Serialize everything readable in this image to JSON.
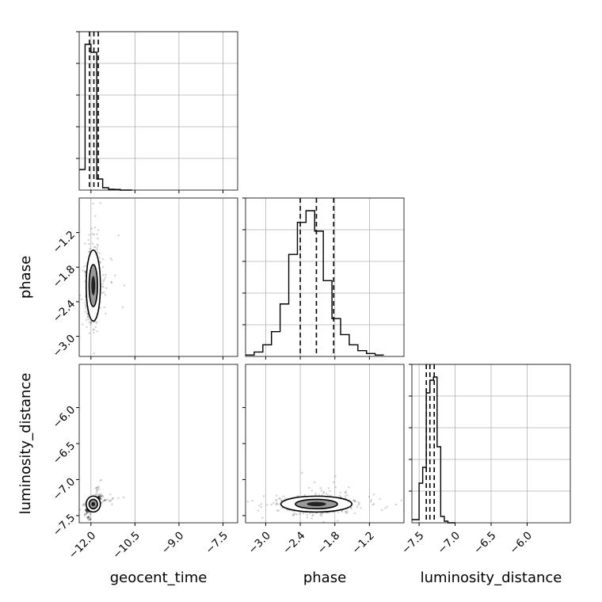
{
  "chart_data": {
    "type": "corner",
    "parameters": [
      "geocent_time",
      "phase",
      "luminosity_distance"
    ],
    "xlabels": {
      "geocent_time": "geocent_time",
      "phase": "phase",
      "luminosity_distance": "luminosity_distance"
    },
    "ylabels": {
      "phase": "phase",
      "luminosity_distance": "luminosity_distance"
    },
    "ranges": {
      "geocent_time": [
        -12.4,
        -7.0
      ],
      "phase": [
        -3.35,
        -0.6
      ],
      "luminosity_distance": [
        -7.6,
        -5.4
      ]
    },
    "ticks": {
      "geocent_time": [
        -12.0,
        -10.5,
        -9.0,
        -7.5
      ],
      "phase": [
        -3.0,
        -2.4,
        -1.8,
        -1.2
      ],
      "luminosity_distance": [
        -7.5,
        -7.0,
        -6.5,
        -6.0
      ]
    },
    "tick_labels": {
      "geocent_time": [
        "−12.0",
        "−10.5",
        "−9.0",
        "−7.5"
      ],
      "phase": [
        "−3.0",
        "−2.4",
        "−1.8",
        "−1.2"
      ],
      "luminosity_distance": [
        "−7.5",
        "−7.0",
        "−6.5",
        "−6.0"
      ]
    },
    "quantiles": {
      "geocent_time": [
        -12.05,
        -11.9,
        -11.75
      ],
      "phase": [
        -2.4,
        -2.12,
        -1.82
      ],
      "luminosity_distance": [
        -7.4,
        -7.35,
        -7.29
      ]
    },
    "histograms": {
      "geocent_time": {
        "bins": [
          -12.4,
          -12.2,
          -12.0,
          -11.8,
          -11.6,
          -11.4,
          -11.2,
          -11.0,
          -10.8,
          -10.6
        ],
        "counts": [
          0.13,
          0.92,
          0.87,
          0.07,
          0.015,
          0.005,
          0.004,
          0.0,
          0.0
        ]
      },
      "phase": {
        "bins": [
          -3.35,
          -3.2,
          -3.05,
          -2.9,
          -2.75,
          -2.6,
          -2.45,
          -2.3,
          -2.15,
          -2.0,
          -1.85,
          -1.7,
          -1.55,
          -1.4,
          -1.25,
          -1.1,
          -0.95
        ],
        "counts": [
          0.01,
          0.03,
          0.08,
          0.17,
          0.36,
          0.7,
          0.92,
          1.0,
          0.86,
          0.52,
          0.26,
          0.15,
          0.08,
          0.04,
          0.02,
          0.01
        ]
      },
      "luminosity_distance": {
        "bins": [
          -7.6,
          -7.5,
          -7.45,
          -7.4,
          -7.35,
          -7.3,
          -7.25,
          -7.2,
          -7.15,
          -7.1,
          -7.0
        ],
        "counts": [
          0.02,
          0.25,
          0.35,
          0.82,
          0.9,
          0.92,
          0.48,
          0.04,
          0.01,
          0.0
        ]
      }
    },
    "grid": true
  }
}
